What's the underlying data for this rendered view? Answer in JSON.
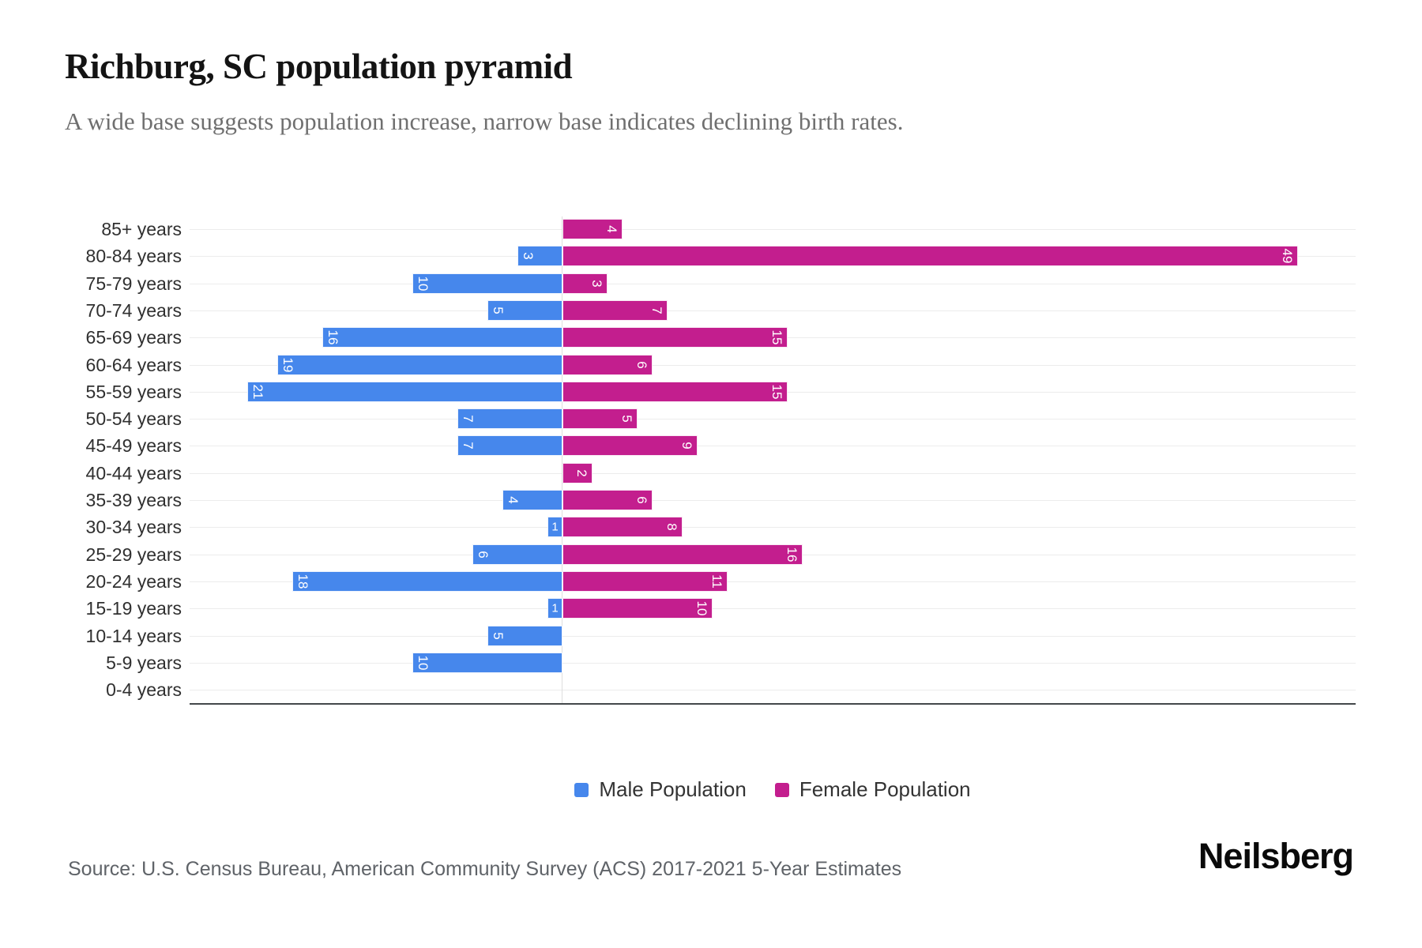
{
  "header": {
    "title": "Richburg, SC population pyramid",
    "subtitle": "A wide base suggests population increase, narrow base indicates declining birth rates."
  },
  "chart_data": {
    "type": "bar",
    "variant": "population-pyramid",
    "orientation": "horizontal",
    "categories": [
      "85+ years",
      "80-84 years",
      "75-79 years",
      "70-74 years",
      "65-69 years",
      "60-64 years",
      "55-59 years",
      "50-54 years",
      "45-49 years",
      "40-44 years",
      "35-39 years",
      "30-34 years",
      "25-29 years",
      "20-24 years",
      "15-19 years",
      "10-14 years",
      "5-9 years",
      "0-4 years"
    ],
    "series": [
      {
        "name": "Male Population",
        "side": "left",
        "color": "#4687EC",
        "values": [
          0,
          3,
          10,
          5,
          16,
          19,
          21,
          7,
          7,
          0,
          4,
          1,
          6,
          18,
          1,
          5,
          10,
          0
        ]
      },
      {
        "name": "Female Population",
        "side": "right",
        "color": "#C31E8E",
        "values": [
          4,
          49,
          3,
          7,
          15,
          6,
          15,
          5,
          9,
          2,
          6,
          8,
          16,
          11,
          10,
          0,
          0,
          0
        ]
      }
    ],
    "value_labels": {
      "visible": true,
      "position": "inside-outer-end",
      "color": "#FFFFFF",
      "rotation": "90deg (upright when value is 1)",
      "hide_zero": true
    },
    "axis": {
      "value_max_shown": 49,
      "zero_line": true,
      "gridlines": "horizontal per category"
    },
    "legend_position": "bottom-center"
  },
  "footer": {
    "source": "Source: U.S. Census Bureau, American Community Survey (ACS) 2017-2021 5-Year Estimates",
    "brand": "Neilsberg"
  },
  "colors": {
    "male": "#4687EC",
    "female": "#C31E8E",
    "title": "#141414",
    "subtitle": "#6F6F6F",
    "age_labels": "#303030",
    "gridline": "#ECECEC",
    "zero_line": "#DEDEDE",
    "axis_line": "#43484B",
    "legend_text": "#333333",
    "source_text": "#5F6368",
    "background": "#FFFFFF"
  }
}
